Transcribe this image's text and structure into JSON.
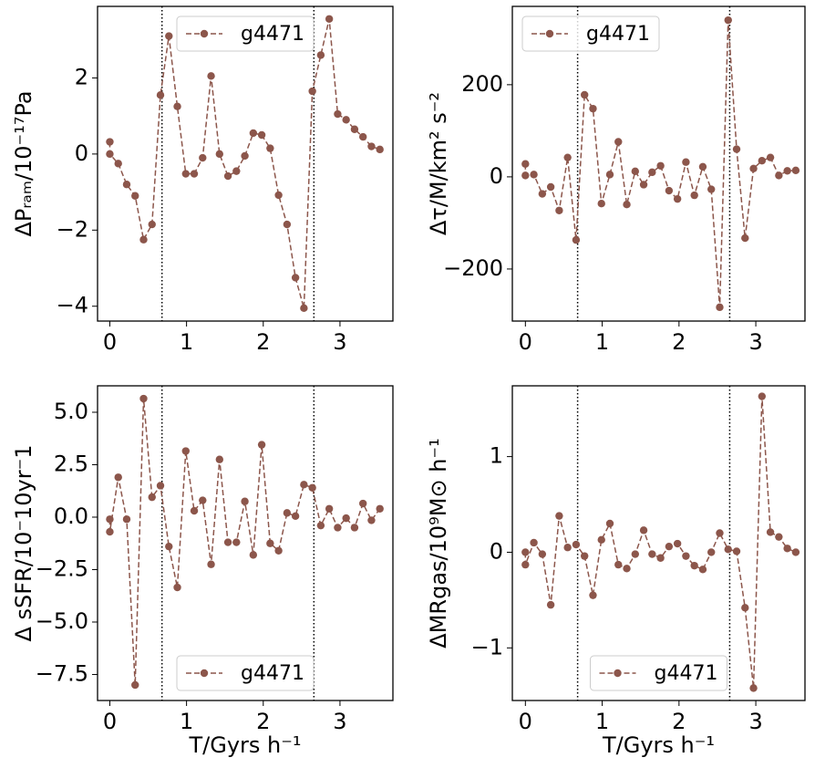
{
  "chart_data": [
    {
      "type": "line",
      "ylabel": "ΔPᵣₐₘ/10⁻¹⁷Pa",
      "x": [
        0,
        0,
        0.11,
        0.22,
        0.33,
        0.44,
        0.55,
        0.66,
        0.77,
        0.88,
        0.99,
        1.1,
        1.21,
        1.32,
        1.43,
        1.54,
        1.65,
        1.76,
        1.87,
        1.98,
        2.09,
        2.2,
        2.31,
        2.42,
        2.53,
        2.64,
        2.75,
        2.86,
        2.97,
        3.08,
        3.19,
        3.3,
        3.41,
        3.52
      ],
      "series": [
        {
          "name": "g4471",
          "color": "#8c564b",
          "values": [
            0.32,
            0.0,
            -0.25,
            -0.8,
            -1.1,
            -2.25,
            -1.85,
            1.55,
            3.1,
            1.25,
            -0.52,
            -0.52,
            -0.1,
            2.05,
            0.0,
            -0.58,
            -0.45,
            -0.05,
            0.55,
            0.5,
            0.15,
            -1.08,
            -1.85,
            -3.25,
            -4.05,
            1.65,
            2.6,
            3.55,
            1.05,
            0.9,
            0.65,
            0.45,
            0.2,
            0.12
          ]
        }
      ],
      "xlim": [
        -0.16,
        3.69
      ],
      "ylim": [
        -4.39,
        3.88
      ],
      "xticks": [
        0,
        1,
        2,
        3
      ],
      "yticks": [
        {
          "value": -4,
          "label": "−4"
        },
        {
          "value": -2,
          "label": "−2"
        },
        0,
        2
      ],
      "vlines": [
        0.68,
        2.66
      ],
      "legend": "upper center"
    },
    {
      "type": "line",
      "ylabel": "Δτ/M/km² s⁻²",
      "x": [
        0,
        0,
        0.11,
        0.22,
        0.33,
        0.44,
        0.55,
        0.66,
        0.77,
        0.88,
        0.99,
        1.1,
        1.21,
        1.32,
        1.43,
        1.54,
        1.65,
        1.76,
        1.87,
        1.98,
        2.09,
        2.2,
        2.31,
        2.42,
        2.53,
        2.64,
        2.75,
        2.86,
        2.97,
        3.08,
        3.19,
        3.3,
        3.41,
        3.52
      ],
      "series": [
        {
          "name": "g4471",
          "color": "#8c564b",
          "values": [
            28,
            3,
            5,
            -37,
            -22,
            -73,
            42,
            -137,
            178,
            148,
            -58,
            5,
            76,
            -60,
            12,
            -17,
            10,
            24,
            -30,
            -48,
            32,
            -40,
            22,
            -27,
            -283,
            340,
            60,
            -133,
            18,
            35,
            42,
            3,
            13,
            14
          ]
        }
      ],
      "xlim": [
        -0.17,
        3.64
      ],
      "ylim": [
        -313,
        370
      ],
      "xticks": [
        0,
        1,
        2,
        3
      ],
      "yticks": [
        {
          "value": -200,
          "label": "−200"
        },
        0,
        200
      ],
      "vlines": [
        0.68,
        2.66
      ],
      "legend": "upper left"
    },
    {
      "type": "line",
      "xlabel": "T/Gyrs h⁻¹",
      "ylabel": "Δ sSFR/10⁻10yr⁻1",
      "x": [
        0,
        0,
        0.11,
        0.22,
        0.33,
        0.44,
        0.55,
        0.66,
        0.77,
        0.88,
        0.99,
        1.1,
        1.21,
        1.32,
        1.43,
        1.54,
        1.65,
        1.76,
        1.87,
        1.98,
        2.09,
        2.2,
        2.31,
        2.42,
        2.53,
        2.64,
        2.75,
        2.86,
        2.97,
        3.08,
        3.19,
        3.3,
        3.41,
        3.52
      ],
      "series": [
        {
          "name": "g4471",
          "color": "#8c564b",
          "values": [
            -0.1,
            -0.7,
            1.9,
            -0.1,
            -8.0,
            5.65,
            0.95,
            1.5,
            -1.4,
            -3.35,
            3.15,
            0.3,
            0.8,
            -2.25,
            2.75,
            -1.2,
            -1.2,
            0.75,
            -1.8,
            3.45,
            -1.25,
            -1.6,
            0.2,
            0.05,
            1.55,
            1.4,
            -0.4,
            0.4,
            -0.5,
            -0.05,
            -0.5,
            0.65,
            -0.15,
            0.4
          ]
        }
      ],
      "xlim": [
        -0.16,
        3.69
      ],
      "ylim": [
        -8.74,
        6.26
      ],
      "xticks": [
        0,
        1,
        2,
        3
      ],
      "yticks": [
        {
          "value": -7.5,
          "label": "−7.5"
        },
        {
          "value": -5,
          "label": "−5.0"
        },
        {
          "value": -2.5,
          "label": "−2.5"
        },
        {
          "value": 0,
          "label": "0.0"
        },
        2.5,
        {
          "value": 5,
          "label": "5.0"
        }
      ],
      "vlines": [
        0.68,
        2.66
      ],
      "legend": "lower center"
    },
    {
      "type": "line",
      "xlabel": "T/Gyrs h⁻¹",
      "ylabel": "ΔMRgas/10⁹M⊙ h⁻¹",
      "x": [
        0,
        0,
        0.11,
        0.22,
        0.33,
        0.44,
        0.55,
        0.66,
        0.77,
        0.88,
        0.99,
        1.1,
        1.21,
        1.32,
        1.43,
        1.54,
        1.65,
        1.76,
        1.87,
        1.98,
        2.09,
        2.2,
        2.31,
        2.42,
        2.53,
        2.64,
        2.75,
        2.86,
        2.97,
        3.08,
        3.19,
        3.3,
        3.41,
        3.52
      ],
      "series": [
        {
          "name": "g4471",
          "color": "#8c564b",
          "values": [
            0.0,
            -0.13,
            0.1,
            -0.02,
            -0.55,
            0.38,
            0.05,
            0.08,
            -0.04,
            -0.45,
            0.13,
            0.3,
            -0.13,
            -0.17,
            -0.02,
            0.23,
            -0.02,
            -0.06,
            0.06,
            0.09,
            -0.04,
            -0.14,
            -0.18,
            0.0,
            0.2,
            0.03,
            0.01,
            -0.58,
            -1.42,
            1.63,
            0.21,
            0.16,
            0.04,
            0.0
          ]
        }
      ],
      "xlim": [
        -0.17,
        3.64
      ],
      "ylim": [
        -1.55,
        1.74
      ],
      "xticks": [
        0,
        1,
        2,
        3
      ],
      "yticks": [
        {
          "value": -1,
          "label": "−1"
        },
        0,
        1
      ],
      "vlines": [
        0.68,
        2.66
      ],
      "legend": "lower center"
    }
  ]
}
